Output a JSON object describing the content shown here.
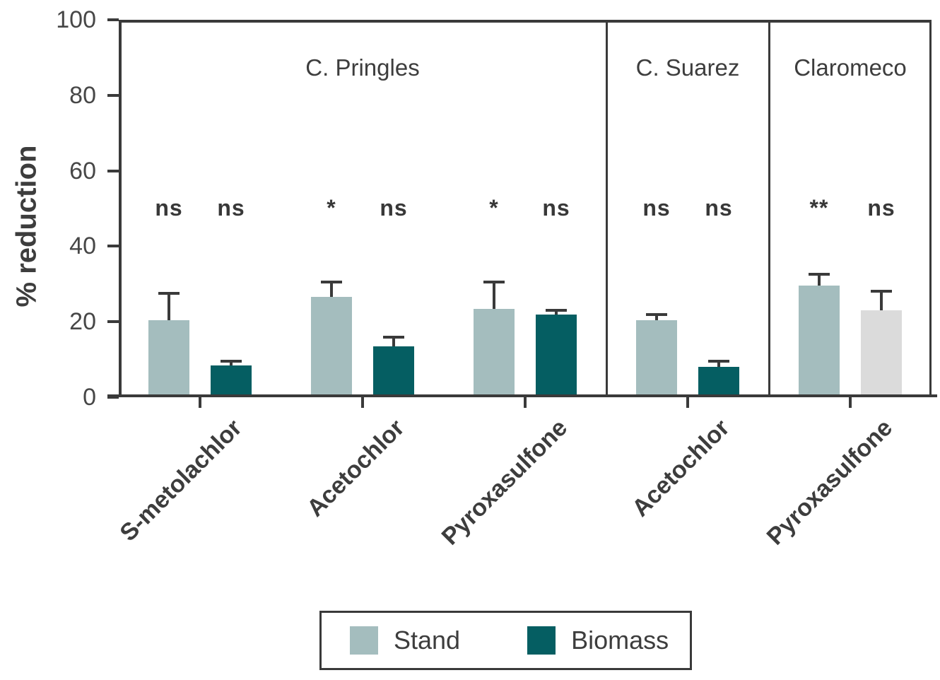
{
  "chart_data": {
    "type": "bar",
    "title": "",
    "xlabel": "",
    "ylabel": "% reduction",
    "ylim": [
      0,
      100
    ],
    "yticks": [
      0,
      20,
      40,
      60,
      80,
      100
    ],
    "grid": false,
    "legend_position": "bottom",
    "series_names": [
      "Stand",
      "Biomass"
    ],
    "colors": {
      "stand": "#a4bdbe",
      "biomass": "#055e62",
      "light_gray": "#dbdbdb",
      "axis": "#3a3a3a"
    },
    "panels": [
      {
        "label": "C. Pringles",
        "groups": [
          {
            "category": "S-metolachlor",
            "bars": [
              {
                "series": "Stand",
                "value": 20.5,
                "error_top": 27.5,
                "sig": "ns",
                "color_key": "stand"
              },
              {
                "series": "Biomass",
                "value": 8.5,
                "error_top": 9.5,
                "sig": "ns",
                "color_key": "biomass"
              }
            ]
          },
          {
            "category": "Acetochlor",
            "bars": [
              {
                "series": "Stand",
                "value": 26.5,
                "error_top": 30.5,
                "sig": "*",
                "color_key": "stand"
              },
              {
                "series": "Biomass",
                "value": 13.5,
                "error_top": 16,
                "sig": "ns",
                "color_key": "biomass"
              }
            ]
          },
          {
            "category": "Pyroxasulfone",
            "bars": [
              {
                "series": "Stand",
                "value": 23.5,
                "error_top": 30.5,
                "sig": "*",
                "color_key": "stand"
              },
              {
                "series": "Biomass",
                "value": 22,
                "error_top": 23,
                "sig": "ns",
                "color_key": "biomass"
              }
            ]
          }
        ]
      },
      {
        "label": "C. Suarez",
        "groups": [
          {
            "category": "Acetochlor",
            "bars": [
              {
                "series": "Stand",
                "value": 20.5,
                "error_top": 22,
                "sig": "ns",
                "color_key": "stand"
              },
              {
                "series": "Biomass",
                "value": 8,
                "error_top": 9.5,
                "sig": "ns",
                "color_key": "biomass"
              }
            ]
          }
        ]
      },
      {
        "label": "Claromeco",
        "groups": [
          {
            "category": "Pyroxasulfone",
            "bars": [
              {
                "series": "Stand",
                "value": 29.5,
                "error_top": 32.5,
                "sig": "**",
                "color_key": "stand"
              },
              {
                "series": "Biomass",
                "value": 23,
                "error_top": 28,
                "sig": "ns",
                "color_key": "light_gray"
              }
            ]
          }
        ]
      }
    ],
    "legend": {
      "items": [
        {
          "label": "Stand",
          "color_key": "stand"
        },
        {
          "label": "Biomass",
          "color_key": "biomass"
        }
      ]
    }
  }
}
